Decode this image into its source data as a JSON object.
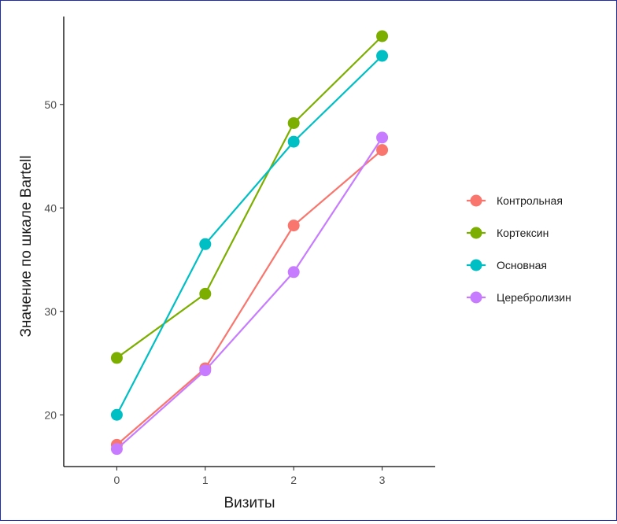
{
  "chart_data": {
    "type": "line",
    "xlabel": "Визиты",
    "ylabel": "Значение по шкале Bartell",
    "x": [
      0,
      1,
      2,
      3
    ],
    "xlim": [
      -0.6,
      3.6
    ],
    "ylim": [
      15,
      58.5
    ],
    "yticks": [
      20,
      30,
      40,
      50
    ],
    "xticks": [
      0,
      1,
      2,
      3
    ],
    "grid": false,
    "legend_position": "right",
    "series": [
      {
        "name": "Контрольная",
        "color": "#F8766D",
        "values": [
          17.1,
          24.5,
          38.3,
          45.6
        ]
      },
      {
        "name": "Кортексин",
        "color": "#7CAE00",
        "values": [
          25.5,
          31.7,
          48.2,
          56.6
        ]
      },
      {
        "name": "Основная",
        "color": "#00BFC4",
        "values": [
          20.0,
          36.5,
          46.4,
          54.7
        ]
      },
      {
        "name": "Церебролизин",
        "color": "#C77CFF",
        "values": [
          16.7,
          24.3,
          33.8,
          46.8
        ]
      }
    ]
  }
}
